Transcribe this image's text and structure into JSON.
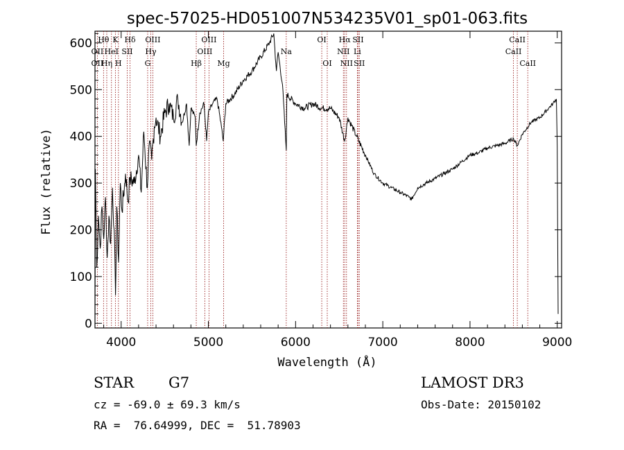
{
  "chart_data": {
    "type": "line",
    "title": "spec-57025-HD051007N534235V01_sp01-063.fits",
    "xlabel": "Wavelength (Å)",
    "ylabel": "Flux (relative)",
    "xlim": [
      3700,
      9050
    ],
    "ylim": [
      -10,
      625
    ],
    "x_ticks": [
      4000,
      5000,
      6000,
      7000,
      8000,
      9000
    ],
    "y_ticks": [
      0,
      100,
      200,
      300,
      400,
      500,
      600
    ],
    "grid": false,
    "series": [
      {
        "color": "#000000",
        "points": [
          [
            3700,
            10
          ],
          [
            3705,
            330
          ],
          [
            3720,
            120
          ],
          [
            3740,
            230
          ],
          [
            3760,
            160
          ],
          [
            3780,
            250
          ],
          [
            3800,
            180
          ],
          [
            3820,
            270
          ],
          [
            3840,
            140
          ],
          [
            3860,
            230
          ],
          [
            3880,
            170
          ],
          [
            3900,
            290
          ],
          [
            3920,
            200
          ],
          [
            3935,
            60
          ],
          [
            3950,
            250
          ],
          [
            3970,
            130
          ],
          [
            3990,
            300
          ],
          [
            4010,
            240
          ],
          [
            4050,
            320
          ],
          [
            4080,
            260
          ],
          [
            4100,
            310
          ],
          [
            4150,
            300
          ],
          [
            4200,
            360
          ],
          [
            4230,
            280
          ],
          [
            4260,
            410
          ],
          [
            4300,
            290
          ],
          [
            4320,
            380
          ],
          [
            4350,
            350
          ],
          [
            4380,
            420
          ],
          [
            4400,
            440
          ],
          [
            4450,
            400
          ],
          [
            4500,
            450
          ],
          [
            4550,
            470
          ],
          [
            4600,
            440
          ],
          [
            4650,
            480
          ],
          [
            4700,
            430
          ],
          [
            4750,
            470
          ],
          [
            4780,
            380
          ],
          [
            4800,
            460
          ],
          [
            4850,
            440
          ],
          [
            4861,
            380
          ],
          [
            4900,
            450
          ],
          [
            4950,
            470
          ],
          [
            4980,
            390
          ],
          [
            5000,
            450
          ],
          [
            5050,
            470
          ],
          [
            5100,
            480
          ],
          [
            5150,
            420
          ],
          [
            5170,
            390
          ],
          [
            5200,
            470
          ],
          [
            5300,
            490
          ],
          [
            5400,
            520
          ],
          [
            5500,
            540
          ],
          [
            5600,
            570
          ],
          [
            5700,
            600
          ],
          [
            5750,
            620
          ],
          [
            5780,
            540
          ],
          [
            5800,
            580
          ],
          [
            5850,
            510
          ],
          [
            5893,
            370
          ],
          [
            5900,
            490
          ],
          [
            6000,
            470
          ],
          [
            6100,
            460
          ],
          [
            6200,
            470
          ],
          [
            6300,
            460
          ],
          [
            6400,
            460
          ],
          [
            6500,
            440
          ],
          [
            6563,
            390
          ],
          [
            6600,
            440
          ],
          [
            6700,
            400
          ],
          [
            6800,
            360
          ],
          [
            6900,
            320
          ],
          [
            7000,
            300
          ],
          [
            7100,
            290
          ],
          [
            7200,
            280
          ],
          [
            7300,
            270
          ],
          [
            7330,
            265
          ],
          [
            7400,
            290
          ],
          [
            7500,
            300
          ],
          [
            7600,
            310
          ],
          [
            7700,
            320
          ],
          [
            7800,
            330
          ],
          [
            7900,
            345
          ],
          [
            8000,
            360
          ],
          [
            8100,
            365
          ],
          [
            8200,
            375
          ],
          [
            8300,
            380
          ],
          [
            8400,
            385
          ],
          [
            8500,
            395
          ],
          [
            8542,
            380
          ],
          [
            8600,
            405
          ],
          [
            8700,
            430
          ],
          [
            8800,
            440
          ],
          [
            8900,
            460
          ],
          [
            8950,
            470
          ],
          [
            8990,
            480
          ],
          [
            9000,
            380
          ],
          [
            9010,
            20
          ]
        ]
      }
    ],
    "annotations": [
      {
        "label": "Hθ",
        "x": 3798,
        "row": 1
      },
      {
        "label": "OII",
        "x": 3727,
        "row": 2
      },
      {
        "label": "OII",
        "x": 3727,
        "row": 3
      },
      {
        "label": "K",
        "x": 3934,
        "row": 1
      },
      {
        "label": "HeI",
        "x": 3889,
        "row": 2
      },
      {
        "label": "Hη",
        "x": 3835,
        "row": 3
      },
      {
        "label": "Hδ",
        "x": 4102,
        "row": 1
      },
      {
        "label": "SII",
        "x": 4070,
        "row": 2
      },
      {
        "label": "H",
        "x": 3969,
        "row": 3
      },
      {
        "label": "OIII",
        "x": 4363,
        "row": 1
      },
      {
        "label": "Hγ",
        "x": 4340,
        "row": 2
      },
      {
        "label": "G",
        "x": 4304,
        "row": 3
      },
      {
        "label": "OIII",
        "x": 5007,
        "row": 1
      },
      {
        "label": "OIII",
        "x": 4959,
        "row": 2
      },
      {
        "label": "Hβ",
        "x": 4861,
        "row": 3
      },
      {
        "label": "Mg",
        "x": 5175,
        "row": 3
      },
      {
        "label": "Na",
        "x": 5893,
        "row": 2
      },
      {
        "label": "OI",
        "x": 6300,
        "row": 1
      },
      {
        "label": "OI",
        "x": 6363,
        "row": 3
      },
      {
        "label": "Hα",
        "x": 6563,
        "row": 1
      },
      {
        "label": "NII",
        "x": 6548,
        "row": 2
      },
      {
        "label": "NII",
        "x": 6584,
        "row": 3
      },
      {
        "label": "SII",
        "x": 6717,
        "row": 1
      },
      {
        "label": "Li",
        "x": 6708,
        "row": 2
      },
      {
        "label": "SII",
        "x": 6731,
        "row": 3
      },
      {
        "label": "CaII",
        "x": 8542,
        "row": 1
      },
      {
        "label": "CaII",
        "x": 8498,
        "row": 2
      },
      {
        "label": "CaII",
        "x": 8662,
        "row": 3
      }
    ],
    "line_color": "#8b0000"
  },
  "info": {
    "object_class": "STAR",
    "subclass": "G7",
    "survey": "LAMOST DR3",
    "redshift_line": "cz = -69.0 ± 69.3 km/s",
    "obs_date": "Obs-Date: 20150102",
    "coords": "RA =  76.64999, DEC =  51.78903"
  }
}
